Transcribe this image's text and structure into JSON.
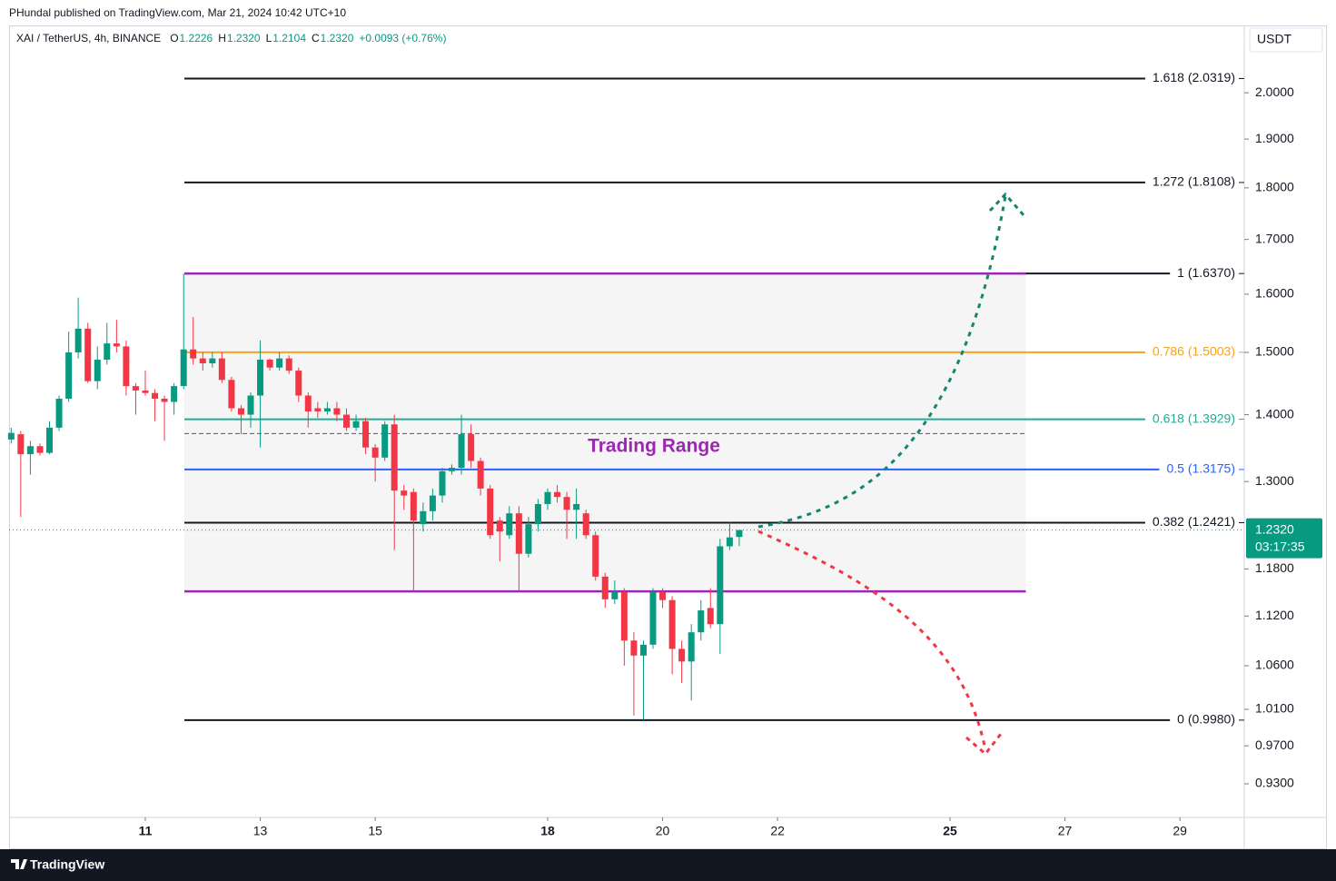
{
  "header": {
    "publisher": "PHundal published on TradingView.com, Mar 21, 2024 10:42 UTC+10"
  },
  "chart_data": {
    "type": "candlestick",
    "symbol": "XAI / TetherUS, 4h, BINANCE",
    "legend": [
      {
        "key": "O",
        "value": "1.2226"
      },
      {
        "key": "H",
        "value": "1.2320"
      },
      {
        "key": "L",
        "value": "1.2104"
      },
      {
        "key": "C",
        "value": "1.2320"
      }
    ],
    "change": "+0.0093 (+0.76%)",
    "currency": "USDT",
    "log_scale": true,
    "up_color": "#089981",
    "down_color": "#f23645",
    "x": [
      8.667,
      8.833,
      9,
      9.167,
      9.333,
      9.5,
      9.667,
      9.833,
      10,
      10.167,
      10.333,
      10.5,
      10.667,
      10.833,
      11,
      11.167,
      11.333,
      11.5,
      11.667,
      11.833,
      12,
      12.167,
      12.333,
      12.5,
      12.667,
      12.833,
      13,
      13.167,
      13.333,
      13.5,
      13.667,
      13.833,
      14,
      14.167,
      14.333,
      14.5,
      14.667,
      14.833,
      15,
      15.167,
      15.333,
      15.5,
      15.667,
      15.833,
      16,
      16.167,
      16.333,
      16.5,
      16.667,
      16.833,
      17,
      17.167,
      17.333,
      17.5,
      17.667,
      17.833,
      18,
      18.167,
      18.333,
      18.5,
      18.667,
      18.833,
      19,
      19.167,
      19.333,
      19.5,
      19.667,
      19.833,
      20,
      20.167,
      20.333,
      20.5,
      20.667,
      20.833,
      21,
      21.167,
      21.333
    ],
    "open": [
      1.362,
      1.37,
      1.34,
      1.352,
      1.342,
      1.38,
      1.425,
      1.5,
      1.54,
      1.453,
      1.488,
      1.515,
      1.51,
      1.445,
      1.438,
      1.434,
      1.425,
      1.42,
      1.445,
      1.505,
      1.49,
      1.482,
      1.49,
      1.455,
      1.41,
      1.4,
      1.43,
      1.488,
      1.475,
      1.49,
      1.47,
      1.43,
      1.41,
      1.405,
      1.41,
      1.4,
      1.38,
      1.39,
      1.35,
      1.335,
      1.385,
      1.287,
      1.285,
      1.24,
      1.258,
      1.28,
      1.315,
      1.32,
      1.37,
      1.33,
      1.29,
      1.245,
      1.225,
      1.255,
      1.2,
      1.24,
      1.268,
      1.285,
      1.278,
      1.26,
      1.255,
      1.225,
      1.17,
      1.141,
      1.15,
      1.09,
      1.072,
      1.085,
      1.15,
      1.14,
      1.08,
      1.065,
      1.1,
      1.13,
      1.11,
      1.21,
      1.2226
    ],
    "high": [
      1.38,
      1.375,
      1.36,
      1.356,
      1.39,
      1.43,
      1.535,
      1.594,
      1.55,
      1.51,
      1.55,
      1.555,
      1.52,
      1.45,
      1.47,
      1.44,
      1.43,
      1.45,
      1.637,
      1.56,
      1.5,
      1.5,
      1.5,
      1.46,
      1.415,
      1.435,
      1.52,
      1.49,
      1.5,
      1.495,
      1.475,
      1.435,
      1.42,
      1.42,
      1.42,
      1.41,
      1.4,
      1.395,
      1.355,
      1.39,
      1.4,
      1.295,
      1.29,
      1.27,
      1.29,
      1.32,
      1.325,
      1.4,
      1.385,
      1.335,
      1.295,
      1.25,
      1.265,
      1.265,
      1.25,
      1.275,
      1.29,
      1.295,
      1.285,
      1.29,
      1.26,
      1.23,
      1.175,
      1.165,
      1.155,
      1.1,
      1.09,
      1.155,
      1.155,
      1.145,
      1.09,
      1.11,
      1.14,
      1.155,
      1.22,
      1.242,
      1.232
    ],
    "low": [
      1.356,
      1.25,
      1.31,
      1.338,
      1.34,
      1.375,
      1.42,
      1.49,
      1.45,
      1.44,
      1.48,
      1.5,
      1.43,
      1.4,
      1.43,
      1.39,
      1.36,
      1.4,
      1.44,
      1.48,
      1.47,
      1.475,
      1.45,
      1.405,
      1.37,
      1.38,
      1.35,
      1.47,
      1.47,
      1.465,
      1.42,
      1.38,
      1.395,
      1.4,
      1.39,
      1.375,
      1.375,
      1.34,
      1.3,
      1.33,
      1.205,
      1.26,
      1.152,
      1.23,
      1.245,
      1.27,
      1.31,
      1.31,
      1.32,
      1.28,
      1.22,
      1.19,
      1.22,
      1.152,
      1.195,
      1.23,
      1.26,
      1.27,
      1.22,
      1.22,
      1.22,
      1.165,
      1.13,
      1.135,
      1.06,
      1.003,
      0.998,
      1.08,
      1.13,
      1.05,
      1.04,
      1.02,
      1.09,
      1.105,
      1.074,
      1.205,
      1.2104
    ],
    "close": [
      1.372,
      1.34,
      1.352,
      1.342,
      1.38,
      1.425,
      1.5,
      1.54,
      1.453,
      1.488,
      1.515,
      1.51,
      1.445,
      1.438,
      1.434,
      1.425,
      1.42,
      1.445,
      1.505,
      1.49,
      1.482,
      1.49,
      1.455,
      1.41,
      1.4,
      1.43,
      1.488,
      1.475,
      1.49,
      1.47,
      1.43,
      1.405,
      1.405,
      1.41,
      1.4,
      1.38,
      1.39,
      1.35,
      1.335,
      1.385,
      1.287,
      1.28,
      1.245,
      1.258,
      1.28,
      1.315,
      1.32,
      1.37,
      1.33,
      1.29,
      1.225,
      1.23,
      1.255,
      1.2,
      1.24,
      1.268,
      1.285,
      1.278,
      1.26,
      1.268,
      1.225,
      1.17,
      1.141,
      1.15,
      1.09,
      1.072,
      1.085,
      1.15,
      1.14,
      1.08,
      1.065,
      1.1,
      1.127,
      1.11,
      1.21,
      1.222,
      1.232
    ],
    "xlim": [
      8.63,
      30.12
    ],
    "xticks": [
      11,
      13,
      15,
      18,
      20,
      22,
      25,
      27,
      29
    ],
    "ylim": [
      0.896,
      2.155
    ],
    "yticks": [
      {
        "value": 2,
        "label": "2.0000"
      },
      {
        "value": 1.9,
        "label": "1.9000"
      },
      {
        "value": 1.8,
        "label": "1.8000"
      },
      {
        "value": 1.7,
        "label": "1.7000"
      },
      {
        "value": 1.6,
        "label": "1.6000"
      },
      {
        "value": 1.5,
        "label": "1.5000"
      },
      {
        "value": 1.4,
        "label": "1.4000"
      },
      {
        "value": 1.3,
        "label": "1.3000"
      },
      {
        "value": 1.18,
        "label": "1.1800"
      },
      {
        "value": 1.12,
        "label": "1.1200"
      },
      {
        "value": 1.06,
        "label": "1.0600"
      },
      {
        "value": 1.01,
        "label": "1.0100"
      },
      {
        "value": 0.97,
        "label": "0.9700"
      },
      {
        "value": 0.93,
        "label": "0.9300"
      }
    ],
    "fib_start": 11.68,
    "fib_levels": [
      {
        "label": "1.618 (2.0319)",
        "price": 2.0319,
        "color": "#131722"
      },
      {
        "label": "1.272 (1.8108)",
        "price": 1.8108,
        "color": "#131722"
      },
      {
        "label": "1 (1.6370)",
        "price": 1.637,
        "color": "#131722"
      },
      {
        "label": "0.786 (1.5003)",
        "price": 1.5003,
        "color": "#f7a21b"
      },
      {
        "label": "0.618 (1.3929)",
        "price": 1.3929,
        "color": "#22ab94"
      },
      {
        "label": "0.5 (1.3175)",
        "price": 1.3175,
        "color": "#2962ff"
      },
      {
        "label": "0.382 (1.2421)",
        "price": 1.2421,
        "color": "#131722"
      },
      {
        "label": "0 (0.9980)",
        "price": 0.998,
        "color": "#131722"
      }
    ],
    "trading_range": {
      "label": "Trading Range",
      "top": 1.637,
      "bottom": 1.151,
      "mid": 1.371,
      "x_start": 11.68,
      "x_end": 26.32,
      "color": "#9c27b0"
    },
    "last_price": {
      "value": 1.232,
      "label": "1.2320"
    },
    "countdown": "03:17:35"
  },
  "footer": {
    "brand": "TradingView"
  }
}
